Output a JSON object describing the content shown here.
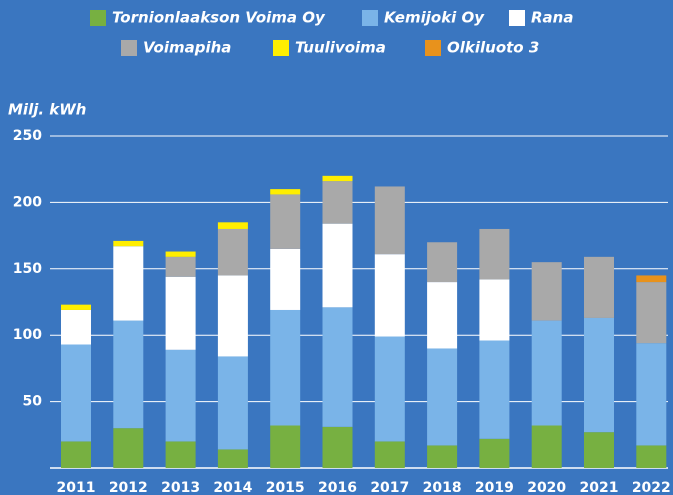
{
  "chart_data": {
    "type": "stacked_bar",
    "y_label": "Milj. kWh",
    "categories": [
      "2011",
      "2012",
      "2013",
      "2014",
      "2015",
      "2016",
      "2017",
      "2018",
      "2019",
      "2020",
      "2021",
      "2022"
    ],
    "series": [
      {
        "name": "Tornionlaakson Voima Oy",
        "color": "#77b041",
        "values": [
          20,
          30,
          20,
          14,
          32,
          31,
          20,
          17,
          22,
          32,
          27,
          17
        ]
      },
      {
        "name": "Kemijoki Oy",
        "color": "#7ab4e8",
        "values": [
          73,
          81,
          69,
          70,
          87,
          90,
          79,
          73,
          74,
          79,
          86,
          77
        ]
      },
      {
        "name": "Rana",
        "color": "#ffffff",
        "values": [
          26,
          56,
          55,
          61,
          46,
          63,
          62,
          50,
          46,
          null,
          null,
          null
        ]
      },
      {
        "name": "Voimapiha",
        "color": "#a9a9a9",
        "values": [
          null,
          null,
          15,
          35,
          41,
          32,
          51,
          30,
          38,
          44,
          46,
          46
        ]
      },
      {
        "name": "Tuulivoima",
        "color": "#ffee00",
        "values": [
          4,
          4,
          4,
          5,
          4,
          4,
          null,
          null,
          null,
          null,
          null,
          null
        ]
      },
      {
        "name": "Olkiluoto 3",
        "color": "#e8921c",
        "values": [
          null,
          null,
          null,
          null,
          null,
          null,
          null,
          null,
          null,
          null,
          null,
          5
        ]
      }
    ],
    "ylim": [
      0,
      250
    ],
    "yticks": [
      50,
      100,
      150,
      200,
      250
    ],
    "grid": true
  }
}
